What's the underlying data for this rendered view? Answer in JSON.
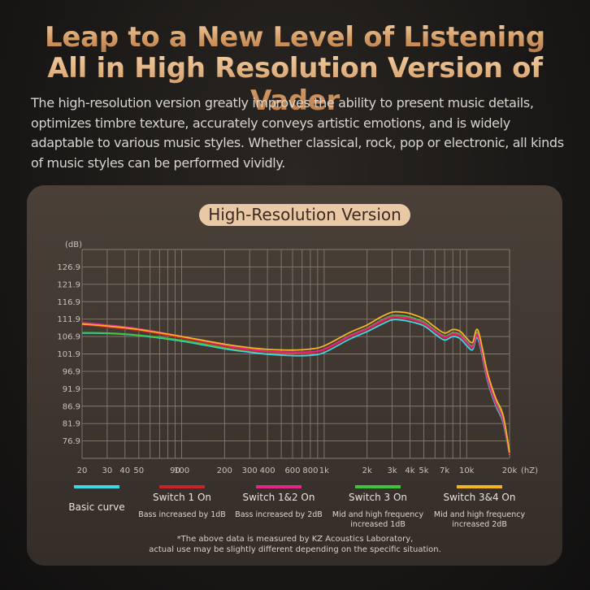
{
  "header": {
    "line1": "Leap to a New Level of Listening",
    "line2": "All in High Resolution Version of Vader",
    "description": "The high-resolution version greatly improves the ability to present music details, optimizes timbre texture, accurately conveys artistic emotions, and is widely adaptable to various music styles. Whether classical, rock, pop or electronic, all kinds of music styles can be performed vividly."
  },
  "chart_title": "High-Resolution Version",
  "footnote": {
    "line1": "*The above data is measured by KZ Acoustics Laboratory,",
    "line2": "actual use may be slightly different depending on the specific situation."
  },
  "colors": {
    "basic": "#3fd6e6",
    "switch1": "#c8222a",
    "switch12": "#e0288c",
    "switch3": "#3cc43c",
    "switch34": "#f2b424"
  },
  "chart_data": {
    "type": "line",
    "title": "High-Resolution Version",
    "ylabel": "(dB)",
    "xlabel": "(hZ)",
    "x_scale": "log",
    "xlim": [
      20,
      20000
    ],
    "ylim": [
      71.9,
      131.9
    ],
    "grid": true,
    "y_ticks": [
      "126.9",
      "121.9",
      "116.9",
      "111.9",
      "106.9",
      "101.9",
      "96.9",
      "91.9",
      "86.9",
      "81.9",
      "76.9"
    ],
    "x_ticks": [
      {
        "label": "20",
        "value": 20
      },
      {
        "label": "30",
        "value": 30
      },
      {
        "label": "40",
        "value": 40
      },
      {
        "label": "50",
        "value": 50
      },
      {
        "label": "90",
        "value": 90
      },
      {
        "label": "100",
        "value": 100
      },
      {
        "label": "200",
        "value": 200
      },
      {
        "label": "300",
        "value": 300
      },
      {
        "label": "400",
        "value": 400
      },
      {
        "label": "600",
        "value": 600
      },
      {
        "label": "800",
        "value": 800
      },
      {
        "label": "1k",
        "value": 1000
      },
      {
        "label": "2k",
        "value": 2000
      },
      {
        "label": "3k",
        "value": 3000
      },
      {
        "label": "4k",
        "value": 4000
      },
      {
        "label": "5k",
        "value": 5000
      },
      {
        "label": "7k",
        "value": 7000
      },
      {
        "label": "10k",
        "value": 10000
      },
      {
        "label": "20k",
        "value": 20000
      }
    ],
    "x": [
      20,
      30,
      50,
      100,
      200,
      300,
      400,
      600,
      800,
      1000,
      1500,
      2000,
      2500,
      3000,
      3500,
      4000,
      5000,
      6000,
      7000,
      8000,
      9000,
      10000,
      11000,
      12000,
      14000,
      16000,
      18000,
      20000
    ],
    "series": [
      {
        "name": "Basic curve",
        "key": "basic",
        "values": [
          107.9,
          107.8,
          107.2,
          105.6,
          103.4,
          102.4,
          101.8,
          101.4,
          101.5,
          102.3,
          106.1,
          108.3,
          110.3,
          111.7,
          111.6,
          111.2,
          110.0,
          107.6,
          105.9,
          106.9,
          106.3,
          104.3,
          103.1,
          106.3,
          94.3,
          87.1,
          82.3,
          72.9
        ]
      },
      {
        "name": "Switch 1 On",
        "key": "switch1",
        "values": [
          110.3,
          109.6,
          108.6,
          106.5,
          104.0,
          102.9,
          102.4,
          102.2,
          102.2,
          103.0,
          106.7,
          108.9,
          110.9,
          112.3,
          112.2,
          111.8,
          110.5,
          108.2,
          106.5,
          107.4,
          106.9,
          104.9,
          103.7,
          107.0,
          94.8,
          87.6,
          82.8,
          73.1
        ]
      },
      {
        "name": "Switch 1&2 On",
        "key": "switch12",
        "values": [
          110.9,
          110.2,
          109.1,
          106.9,
          104.4,
          103.2,
          102.7,
          102.4,
          102.5,
          103.3,
          107.0,
          109.2,
          111.3,
          112.6,
          112.5,
          112.1,
          110.8,
          108.5,
          106.8,
          107.7,
          107.2,
          105.2,
          104.0,
          107.3,
          95.0,
          87.9,
          83.0,
          73.3
        ]
      },
      {
        "name": "Switch 3 On",
        "key": "switch3",
        "values": [
          108.0,
          107.9,
          107.3,
          105.8,
          103.7,
          102.8,
          102.3,
          102.0,
          102.3,
          103.2,
          107.1,
          109.3,
          111.5,
          112.9,
          112.9,
          112.5,
          111.1,
          108.7,
          107.0,
          108.0,
          107.5,
          105.5,
          104.3,
          107.8,
          95.6,
          88.3,
          83.5,
          73.4
        ]
      },
      {
        "name": "Switch 3&4 On",
        "key": "switch34",
        "values": [
          110.5,
          109.9,
          108.9,
          106.9,
          104.7,
          103.7,
          103.2,
          103.0,
          103.3,
          104.2,
          108.0,
          110.2,
          112.5,
          113.9,
          113.9,
          113.5,
          112.0,
          109.6,
          107.9,
          108.9,
          108.4,
          106.4,
          105.2,
          108.7,
          96.5,
          89.2,
          84.4,
          73.6
        ]
      }
    ]
  },
  "legend": [
    {
      "key": "basic",
      "label": "Basic curve",
      "sub1": "",
      "sub2": ""
    },
    {
      "key": "switch1",
      "label": "Switch 1 On",
      "sub1": "Bass increased by 1dB",
      "sub2": ""
    },
    {
      "key": "switch12",
      "label": "Switch 1&2 On",
      "sub1": "Bass increased by 2dB",
      "sub2": ""
    },
    {
      "key": "switch3",
      "label": "Switch 3 On",
      "sub1": "Mid and high frequency",
      "sub2": "increased 1dB"
    },
    {
      "key": "switch34",
      "label": "Switch 3&4 On",
      "sub1": "Mid and high frequency",
      "sub2": "increased 2dB"
    }
  ]
}
